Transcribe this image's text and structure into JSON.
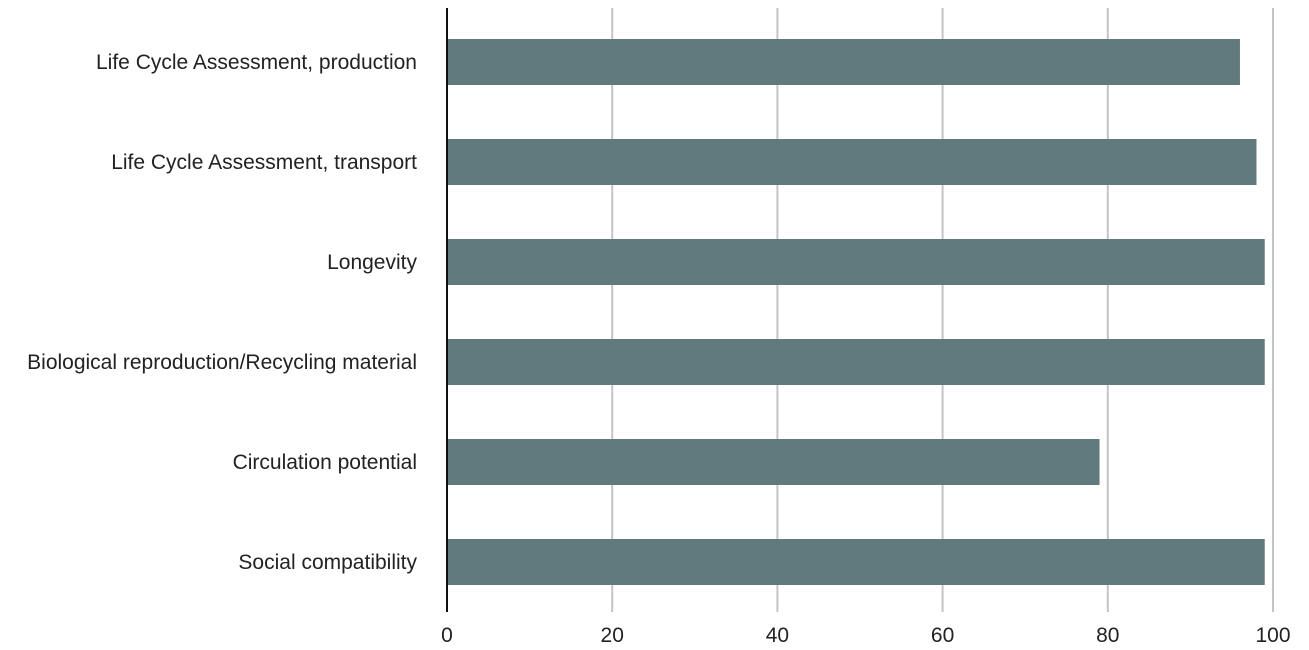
{
  "chart_data": {
    "type": "bar",
    "orientation": "horizontal",
    "title": "",
    "xlabel": "",
    "ylabel": "",
    "categories": [
      "Life Cycle Assessment, production",
      "Life Cycle Assessment, transport",
      "Longevity",
      "Biological reproduction/Recycling material",
      "Circulation potential",
      "Social compatibility"
    ],
    "values": [
      96,
      98,
      99,
      99,
      79,
      99
    ],
    "xlim": [
      0,
      100
    ],
    "xticks": [
      0,
      20,
      40,
      60,
      80,
      100
    ],
    "grid": "vertical",
    "legend": "none",
    "bar_color": "#607a7d"
  }
}
